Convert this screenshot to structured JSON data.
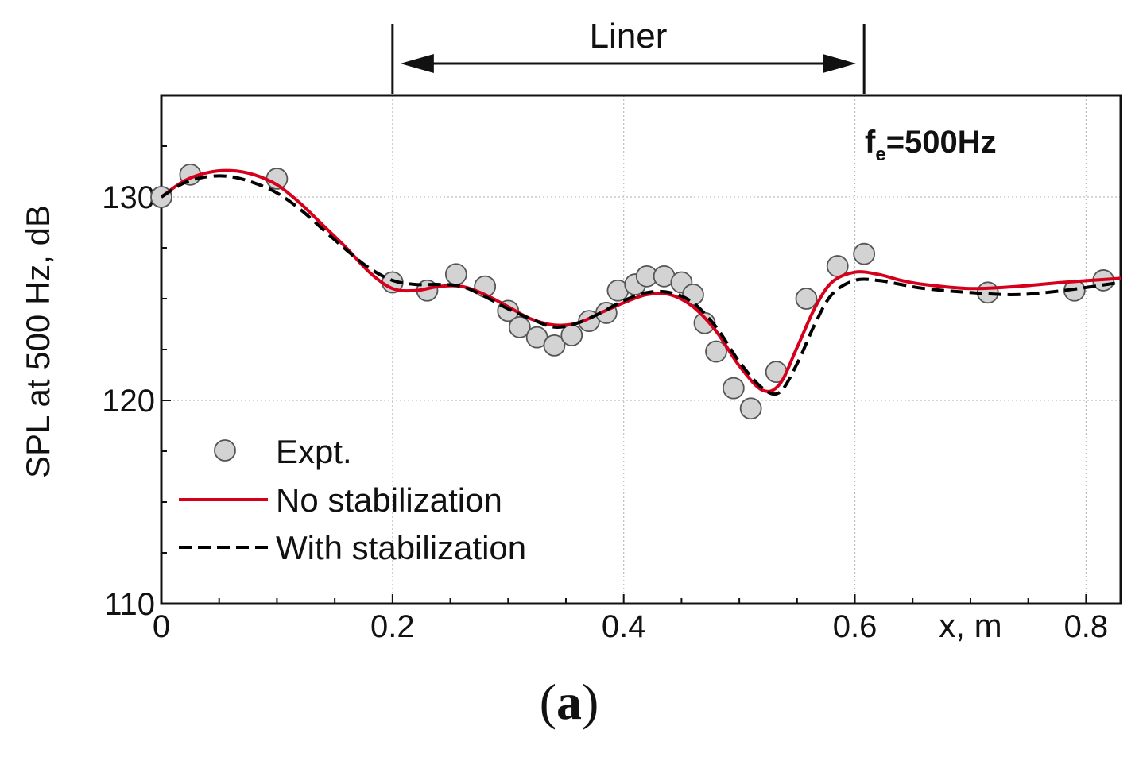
{
  "chart_data": {
    "type": "line",
    "title": "",
    "xlabel": "x, m",
    "ylabel": "SPL at 500 Hz, dB",
    "xlim": [
      0,
      0.83
    ],
    "ylim": [
      110,
      135
    ],
    "x_ticks": [
      0,
      0.2,
      0.4,
      0.6,
      0.8
    ],
    "x_tick_labels": [
      "0",
      "0.2",
      "0.4",
      "0.6",
      "0.8"
    ],
    "y_ticks": [
      110,
      120,
      130
    ],
    "y_tick_labels": [
      "110",
      "120",
      "130"
    ],
    "grid": true,
    "annotations": {
      "liner_label": "Liner",
      "liner_range": [
        0.2,
        0.608
      ],
      "frequency_main": "f",
      "frequency_sub": "e",
      "frequency_value": "=500Hz"
    },
    "legend": {
      "placement": "bottom-left",
      "entries": [
        "Expt.",
        "No stabilization",
        "With stabilization"
      ]
    },
    "series": [
      {
        "name": "Expt.",
        "style": "markers",
        "color": "#d3d3d3",
        "edge": "#555555",
        "points": [
          [
            0.0,
            130.0
          ],
          [
            0.025,
            131.1
          ],
          [
            0.1,
            130.9
          ],
          [
            0.2,
            125.8
          ],
          [
            0.23,
            125.4
          ],
          [
            0.255,
            126.2
          ],
          [
            0.28,
            125.6
          ],
          [
            0.3,
            124.4
          ],
          [
            0.31,
            123.6
          ],
          [
            0.325,
            123.1
          ],
          [
            0.34,
            122.7
          ],
          [
            0.355,
            123.2
          ],
          [
            0.37,
            123.9
          ],
          [
            0.385,
            124.3
          ],
          [
            0.395,
            125.4
          ],
          [
            0.41,
            125.7
          ],
          [
            0.42,
            126.1
          ],
          [
            0.435,
            126.1
          ],
          [
            0.45,
            125.8
          ],
          [
            0.46,
            125.2
          ],
          [
            0.47,
            123.8
          ],
          [
            0.48,
            122.4
          ],
          [
            0.495,
            120.6
          ],
          [
            0.51,
            119.6
          ],
          [
            0.532,
            121.4
          ],
          [
            0.558,
            125.0
          ],
          [
            0.585,
            126.6
          ],
          [
            0.608,
            127.2
          ],
          [
            0.715,
            125.3
          ],
          [
            0.79,
            125.4
          ],
          [
            0.815,
            125.9
          ]
        ]
      },
      {
        "name": "No stabilization",
        "style": "solid",
        "color": "#d6001c",
        "points": [
          [
            0.0,
            130.0
          ],
          [
            0.02,
            130.8
          ],
          [
            0.04,
            131.2
          ],
          [
            0.06,
            131.3
          ],
          [
            0.08,
            131.1
          ],
          [
            0.1,
            130.6
          ],
          [
            0.12,
            129.7
          ],
          [
            0.14,
            128.6
          ],
          [
            0.16,
            127.5
          ],
          [
            0.18,
            126.3
          ],
          [
            0.2,
            125.5
          ],
          [
            0.22,
            125.4
          ],
          [
            0.24,
            125.6
          ],
          [
            0.26,
            125.6
          ],
          [
            0.28,
            125.2
          ],
          [
            0.3,
            124.6
          ],
          [
            0.32,
            124.0
          ],
          [
            0.34,
            123.7
          ],
          [
            0.36,
            123.8
          ],
          [
            0.38,
            124.3
          ],
          [
            0.4,
            124.8
          ],
          [
            0.42,
            125.2
          ],
          [
            0.44,
            125.2
          ],
          [
            0.46,
            124.6
          ],
          [
            0.48,
            123.4
          ],
          [
            0.5,
            121.7
          ],
          [
            0.52,
            120.5
          ],
          [
            0.535,
            120.8
          ],
          [
            0.55,
            122.6
          ],
          [
            0.565,
            124.5
          ],
          [
            0.58,
            125.8
          ],
          [
            0.6,
            126.3
          ],
          [
            0.62,
            126.2
          ],
          [
            0.64,
            125.9
          ],
          [
            0.66,
            125.7
          ],
          [
            0.7,
            125.5
          ],
          [
            0.74,
            125.6
          ],
          [
            0.78,
            125.8
          ],
          [
            0.83,
            126.0
          ]
        ]
      },
      {
        "name": "With stabilization",
        "style": "dashed",
        "color": "#000000",
        "points": [
          [
            0.0,
            130.0
          ],
          [
            0.02,
            130.7
          ],
          [
            0.04,
            131.0
          ],
          [
            0.06,
            131.0
          ],
          [
            0.08,
            130.7
          ],
          [
            0.1,
            130.2
          ],
          [
            0.12,
            129.4
          ],
          [
            0.14,
            128.4
          ],
          [
            0.16,
            127.4
          ],
          [
            0.18,
            126.5
          ],
          [
            0.2,
            125.9
          ],
          [
            0.22,
            125.7
          ],
          [
            0.24,
            125.7
          ],
          [
            0.26,
            125.6
          ],
          [
            0.28,
            125.1
          ],
          [
            0.3,
            124.5
          ],
          [
            0.32,
            124.0
          ],
          [
            0.34,
            123.6
          ],
          [
            0.36,
            123.8
          ],
          [
            0.38,
            124.3
          ],
          [
            0.4,
            124.9
          ],
          [
            0.42,
            125.3
          ],
          [
            0.44,
            125.3
          ],
          [
            0.46,
            124.8
          ],
          [
            0.48,
            123.6
          ],
          [
            0.5,
            121.9
          ],
          [
            0.52,
            120.6
          ],
          [
            0.535,
            120.4
          ],
          [
            0.55,
            121.8
          ],
          [
            0.565,
            123.7
          ],
          [
            0.58,
            125.2
          ],
          [
            0.6,
            125.9
          ],
          [
            0.62,
            125.9
          ],
          [
            0.64,
            125.7
          ],
          [
            0.66,
            125.5
          ],
          [
            0.7,
            125.3
          ],
          [
            0.74,
            125.2
          ],
          [
            0.78,
            125.4
          ],
          [
            0.83,
            125.8
          ]
        ]
      }
    ]
  },
  "caption": {
    "open": "(",
    "letter": "a",
    "close": ")"
  }
}
